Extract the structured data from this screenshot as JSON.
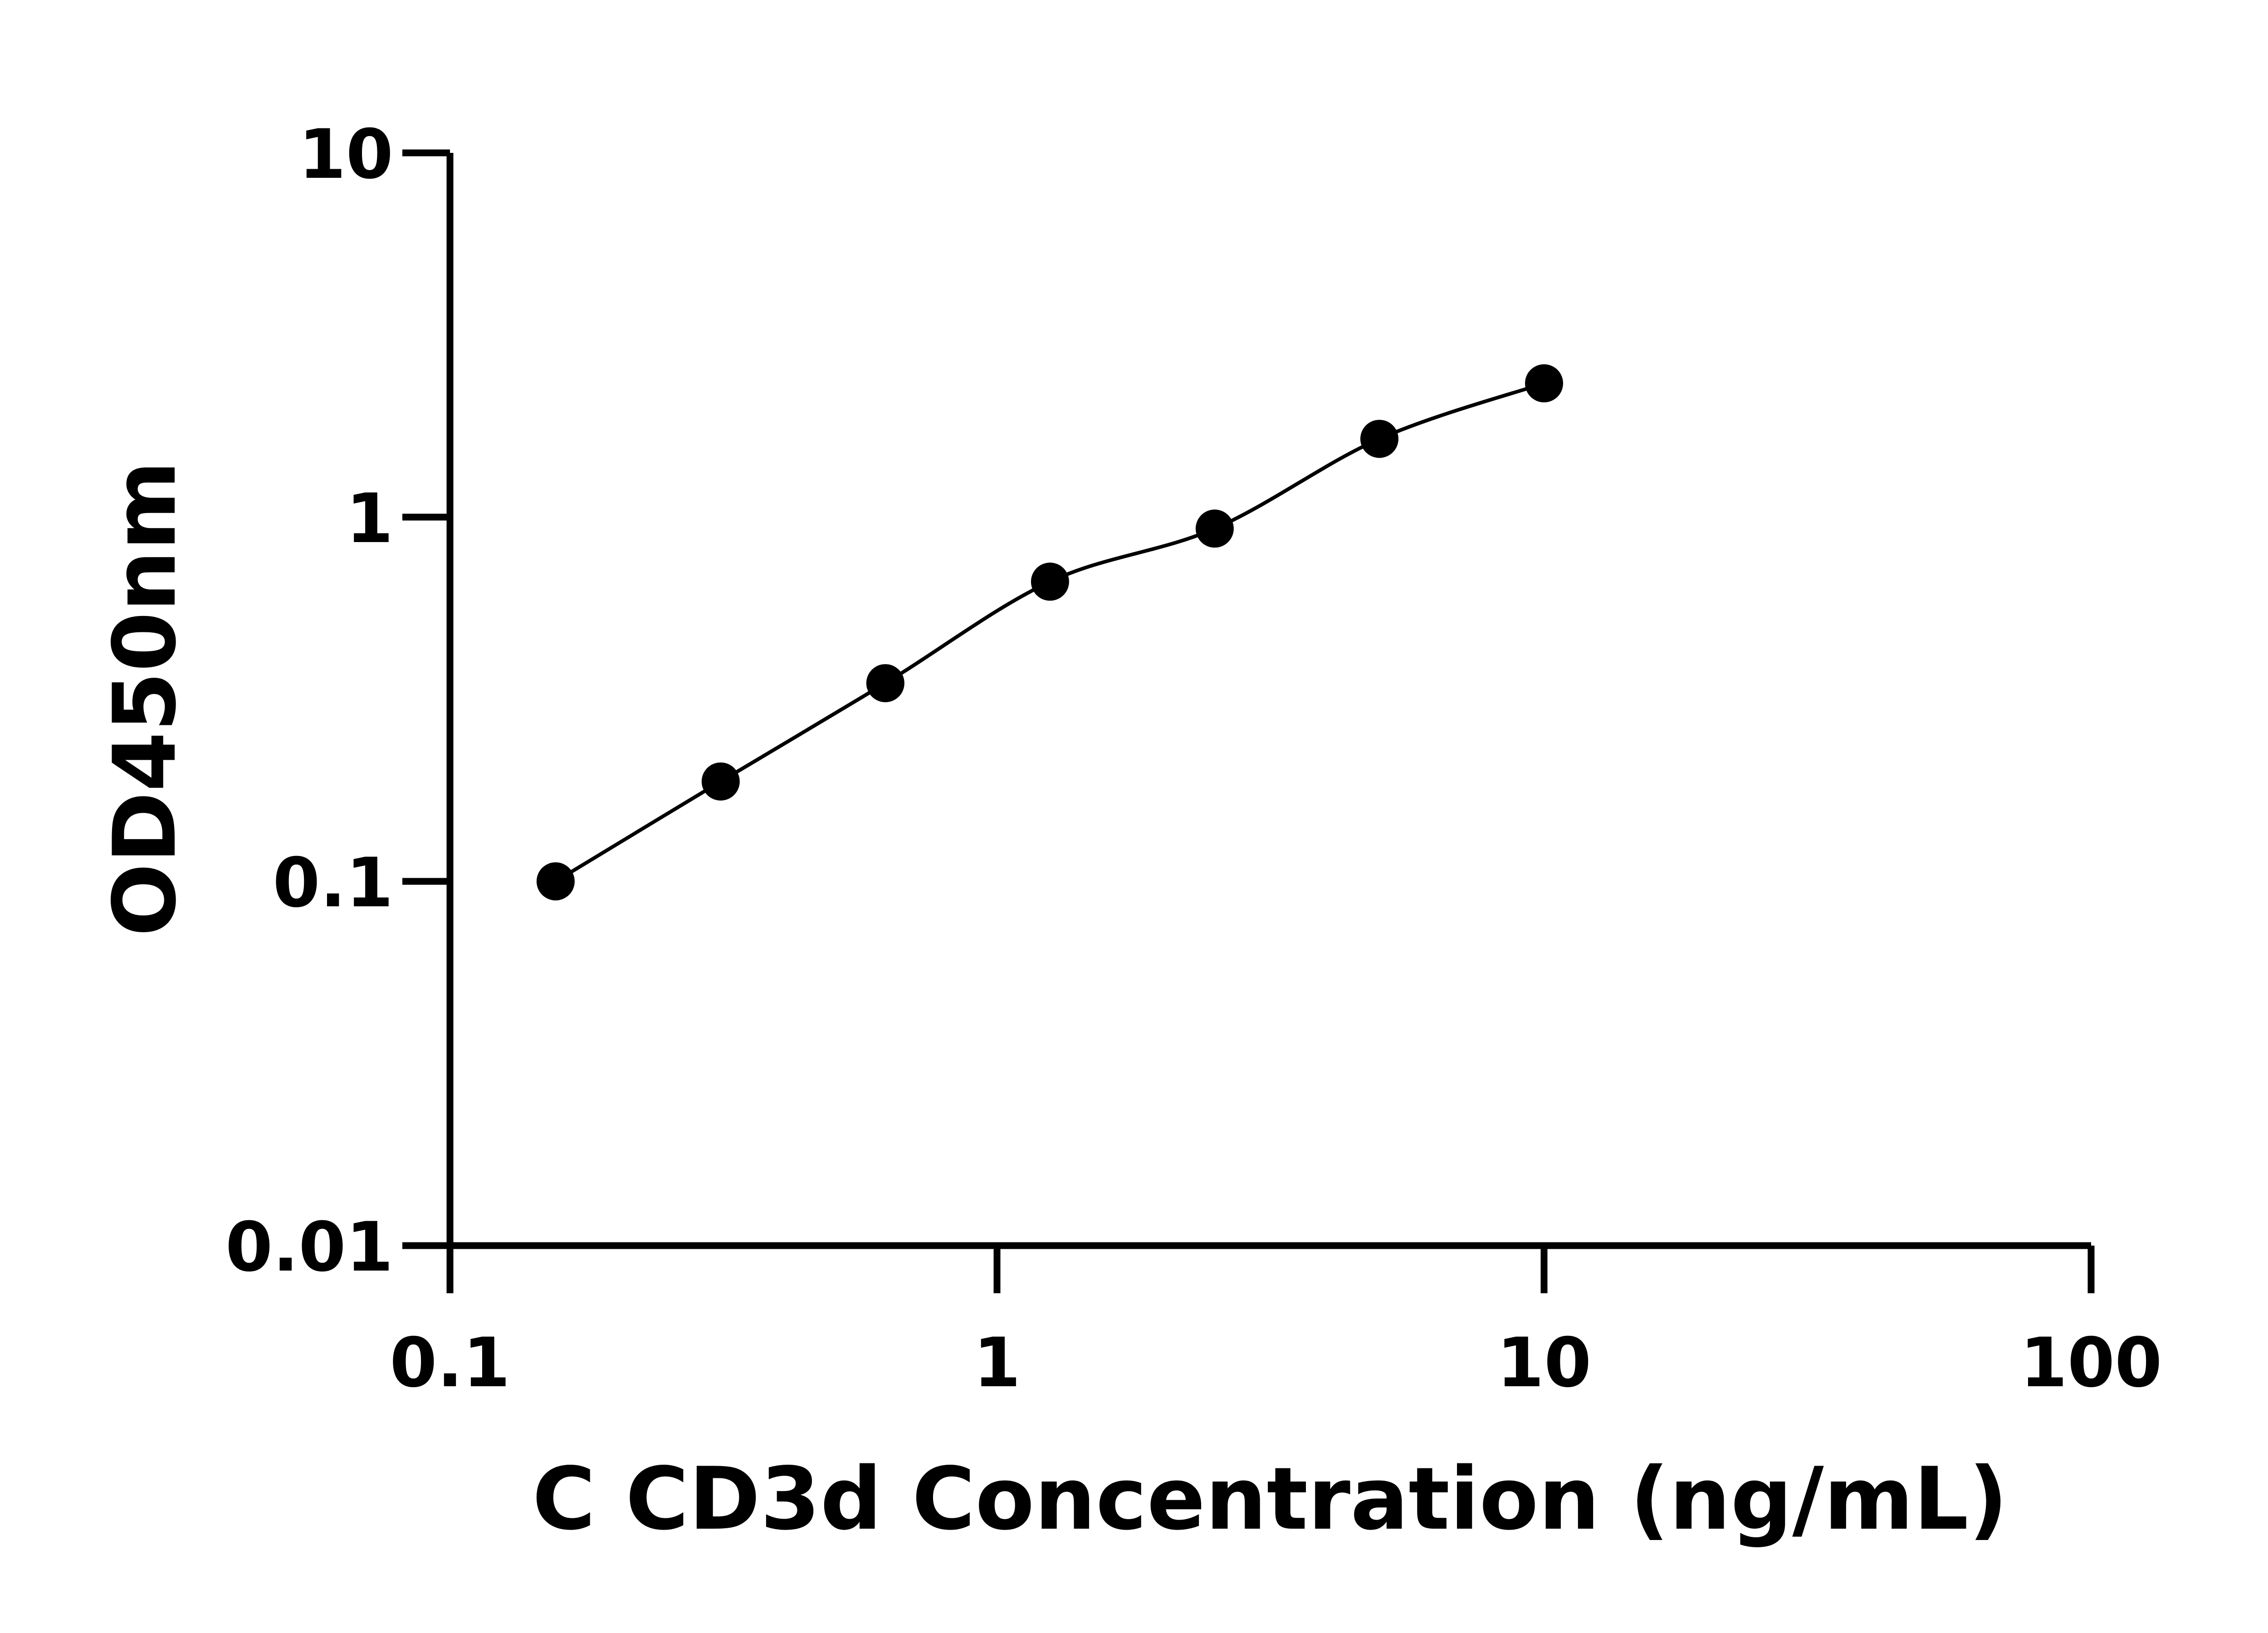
{
  "chart_data": {
    "type": "scatter",
    "title": "",
    "xlabel": "C CD3d Concentration (ng/mL)",
    "ylabel": "OD450nm",
    "xscale": "log",
    "yscale": "log",
    "xlim": [
      0.1,
      100
    ],
    "ylim": [
      0.01,
      10
    ],
    "xticks": [
      0.1,
      1,
      10,
      100
    ],
    "yticks": [
      0.01,
      0.1,
      1,
      10
    ],
    "xtick_labels": [
      "0.1",
      "1",
      "10",
      "100"
    ],
    "ytick_labels": [
      "0.01",
      "0.1",
      "1",
      "10"
    ],
    "grid": false,
    "fit_line": true,
    "color": "#000000",
    "x": [
      0.156,
      0.3125,
      0.625,
      1.25,
      2.5,
      5,
      10
    ],
    "y": [
      0.1,
      0.188,
      0.35,
      0.665,
      0.93,
      1.64,
      2.33
    ]
  }
}
